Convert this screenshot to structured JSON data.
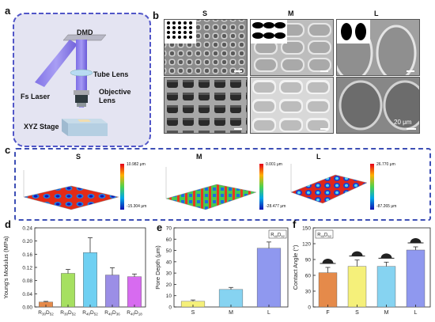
{
  "panels": {
    "a": "a",
    "b": "b",
    "c": "c",
    "d": "d",
    "e": "e",
    "f": "f"
  },
  "setup": {
    "dmd": "DMD",
    "tube_lens": "Tube Lens",
    "fs_laser": "Fs Laser",
    "objective_lens_1": "Objective",
    "objective_lens_2": "Lens",
    "xyz_stage": "XYZ Stage"
  },
  "sem": {
    "cols": [
      "S",
      "M",
      "L"
    ],
    "scale_label": "20 μm"
  },
  "profiles": {
    "titles": [
      "S",
      "M",
      "L"
    ],
    "S": {
      "max": "10.982 μm",
      "min": "-15.304 μm"
    },
    "M": {
      "max": "0.001 μm",
      "min": "-28.477 μm"
    },
    "L": {
      "max": "26.770 μm",
      "min": "-87.265 μm"
    }
  },
  "colors": {
    "panel_border": "#3d4fb5",
    "bar_d": [
      "#e58a4a",
      "#a6e060",
      "#6fd0f2",
      "#9b8ee6",
      "#d76bf0"
    ],
    "bar_e": [
      "#f5f07a",
      "#86d3f1",
      "#8f98ef"
    ],
    "bar_f": [
      "#e58a4a",
      "#f5f07a",
      "#86d3f1",
      "#8f98ef"
    ]
  },
  "chart_data": [
    {
      "type": "bar",
      "categories": [
        "R30D52",
        "R30D52",
        "R40D52",
        "R40D36",
        "R40D18"
      ],
      "values": [
        0.015,
        0.102,
        0.165,
        0.097,
        0.092
      ],
      "errors": [
        0.002,
        0.012,
        0.045,
        0.022,
        0.008
      ],
      "ylabel": "Young's Modulus (MPa)",
      "ylim": [
        0,
        0.24
      ],
      "yticks": [
        "0.00",
        "0.04",
        "0.08",
        "0.12",
        "0.16",
        "0.20",
        "0.24"
      ]
    },
    {
      "type": "bar",
      "categories": [
        "S",
        "M",
        "L"
      ],
      "values": [
        5,
        15.5,
        52
      ],
      "errors": [
        1.2,
        1.8,
        5.5
      ],
      "ylabel": "Pore Depth (μm)",
      "ylim": [
        0,
        70
      ],
      "yticks": [
        "0",
        "10",
        "20",
        "30",
        "40",
        "50",
        "60",
        "70"
      ],
      "annotation": "R40D52"
    },
    {
      "type": "bar",
      "categories": [
        "F",
        "S",
        "M",
        "L"
      ],
      "values": [
        65,
        77,
        77,
        108
      ],
      "errors": [
        10,
        12,
        8,
        6
      ],
      "ylabel": "Contact Angle (°)",
      "ylim": [
        0,
        150
      ],
      "yticks": [
        "0",
        "30",
        "60",
        "90",
        "120",
        "150"
      ],
      "annotation": "R40D52"
    }
  ]
}
